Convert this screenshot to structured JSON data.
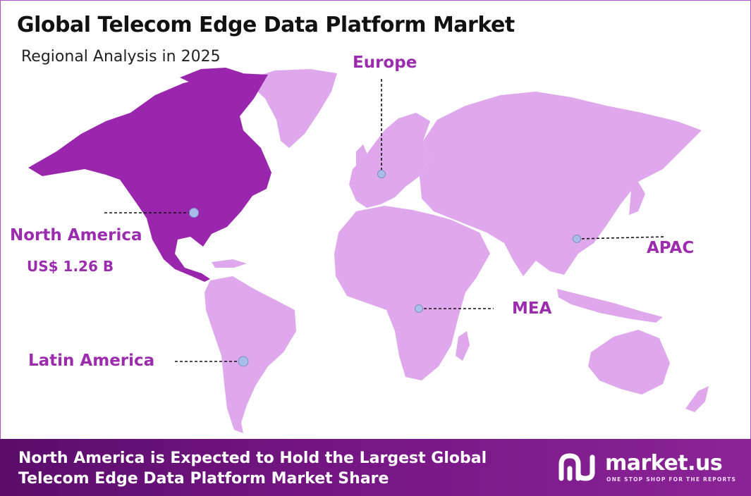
{
  "header": {
    "title": "Global Telecom Edge Data Platform Market",
    "subtitle": "Regional Analysis in 2025"
  },
  "regions": {
    "europe": {
      "label": "Europe"
    },
    "north_america": {
      "label": "North America",
      "value": "US$ 1.26 B"
    },
    "apac": {
      "label": "APAC"
    },
    "mea": {
      "label": "MEA"
    },
    "latin_america": {
      "label": "Latin America"
    }
  },
  "colors": {
    "highlight_region": "#9a26ae",
    "other_regions": "#dfa8ec",
    "label": "#9b2cae",
    "marker": "#a9bde8",
    "banner": "#6e1580"
  },
  "footer": {
    "headline": "North America is Expected to Hold the Largest Global Telecom Edge Data Platform Market Share",
    "brand_name": "market.us",
    "brand_tagline": "ONE STOP SHOP FOR THE REPORTS"
  }
}
